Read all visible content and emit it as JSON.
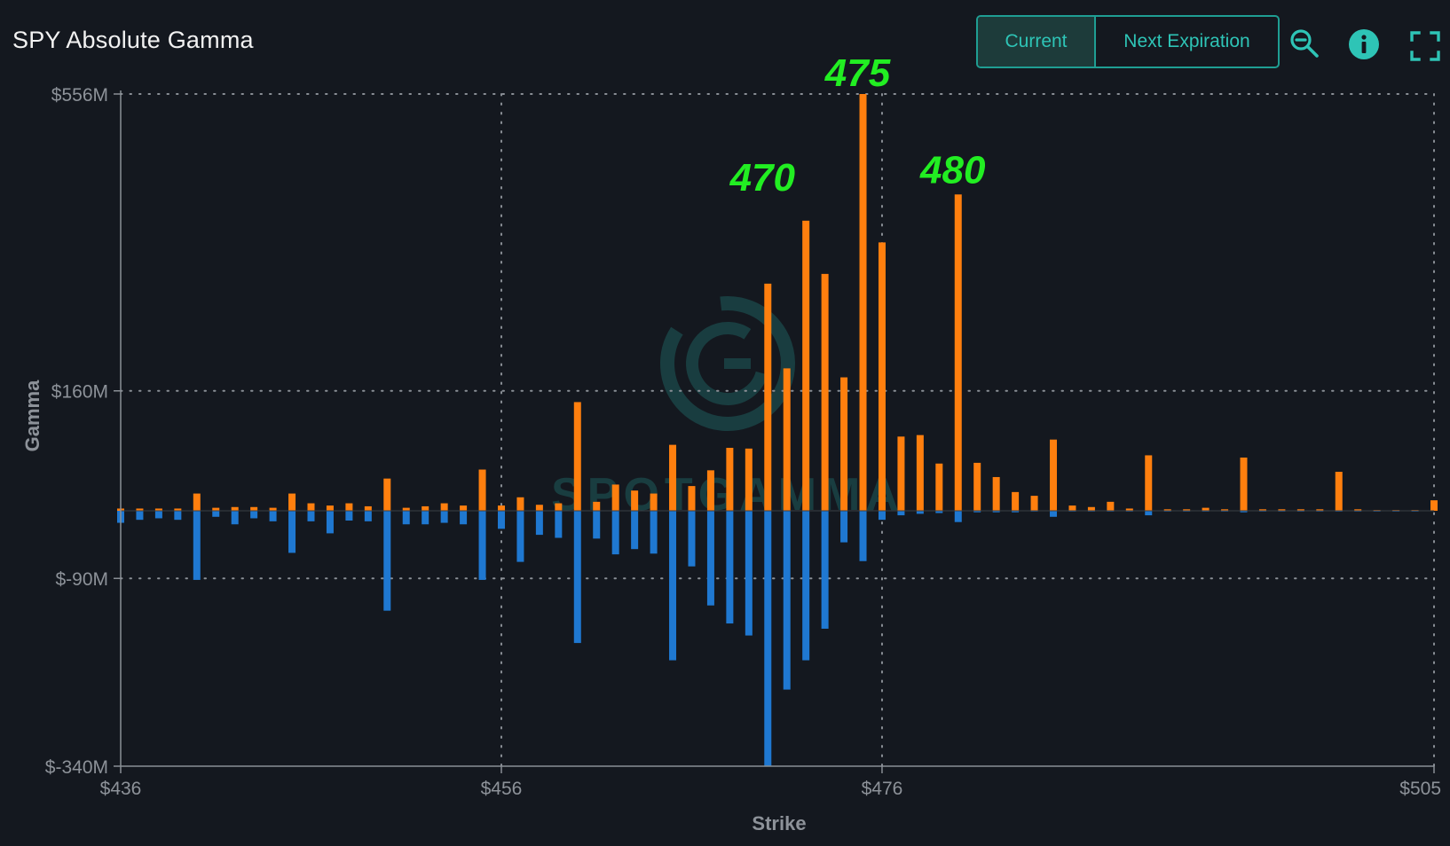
{
  "header": {
    "title": "SPY Absolute Gamma",
    "buttons": {
      "current": "Current",
      "next_expiration": "Next Expiration"
    },
    "icons": [
      "zoom-out-icon",
      "info-icon",
      "fullscreen-icon"
    ]
  },
  "colors": {
    "background": "#14181f",
    "accent": "#2ec4b6",
    "call": "#ff7f0e",
    "put": "#1f78d1",
    "annotation": "#22ee22"
  },
  "chart_data": {
    "type": "bar",
    "title": "SPY Absolute Gamma",
    "xlabel": "Strike",
    "ylabel": "Gamma",
    "xlim": [
      436,
      505
    ],
    "ylim": [
      -340,
      556
    ],
    "x_ticks": [
      {
        "value": 436,
        "label": "$436"
      },
      {
        "value": 456,
        "label": "$456"
      },
      {
        "value": 476,
        "label": "$476"
      },
      {
        "value": 505,
        "label": "$505"
      }
    ],
    "y_ticks": [
      {
        "value": 556,
        "label": "$556M"
      },
      {
        "value": 160,
        "label": "$160M"
      },
      {
        "value": -90,
        "label": "$-90M"
      },
      {
        "value": -340,
        "label": "$-340M"
      }
    ],
    "grid": "dotted",
    "annotations": [
      {
        "x": 470,
        "y": 415,
        "text": "470"
      },
      {
        "x": 475,
        "y": 555,
        "text": "475"
      },
      {
        "x": 480,
        "y": 425,
        "text": "480"
      }
    ],
    "watermark": "SPOTGAMMA",
    "series": [
      {
        "name": "call",
        "values": [
          [
            436,
            3
          ],
          [
            437,
            3
          ],
          [
            438,
            3
          ],
          [
            439,
            3
          ],
          [
            440,
            23
          ],
          [
            441,
            4
          ],
          [
            442,
            5
          ],
          [
            443,
            5
          ],
          [
            444,
            4
          ],
          [
            445,
            23
          ],
          [
            446,
            10
          ],
          [
            447,
            7
          ],
          [
            448,
            10
          ],
          [
            449,
            6
          ],
          [
            450,
            43
          ],
          [
            451,
            4
          ],
          [
            452,
            6
          ],
          [
            453,
            10
          ],
          [
            454,
            7
          ],
          [
            455,
            55
          ],
          [
            456,
            7
          ],
          [
            457,
            18
          ],
          [
            458,
            8
          ],
          [
            459,
            10
          ],
          [
            460,
            145
          ],
          [
            461,
            12
          ],
          [
            462,
            35
          ],
          [
            463,
            27
          ],
          [
            464,
            23
          ],
          [
            465,
            88
          ],
          [
            466,
            33
          ],
          [
            467,
            54
          ],
          [
            468,
            84
          ],
          [
            469,
            83
          ],
          [
            470,
            303
          ],
          [
            471,
            190
          ],
          [
            472,
            387
          ],
          [
            473,
            316
          ],
          [
            474,
            178
          ],
          [
            475,
            556
          ],
          [
            476,
            358
          ],
          [
            477,
            99
          ],
          [
            478,
            101
          ],
          [
            479,
            63
          ],
          [
            480,
            422
          ],
          [
            481,
            64
          ],
          [
            482,
            45
          ],
          [
            483,
            25
          ],
          [
            484,
            20
          ],
          [
            485,
            95
          ],
          [
            486,
            7
          ],
          [
            487,
            5
          ],
          [
            488,
            12
          ],
          [
            489,
            3
          ],
          [
            490,
            74
          ],
          [
            491,
            2
          ],
          [
            492,
            2
          ],
          [
            493,
            4
          ],
          [
            494,
            2
          ],
          [
            495,
            71
          ],
          [
            496,
            2
          ],
          [
            497,
            2
          ],
          [
            498,
            2
          ],
          [
            499,
            2
          ],
          [
            500,
            52
          ],
          [
            501,
            2
          ],
          [
            502,
            1
          ],
          [
            503,
            1
          ],
          [
            504,
            1
          ],
          [
            505,
            14
          ]
        ]
      },
      {
        "name": "put",
        "values": [
          [
            436,
            -16
          ],
          [
            437,
            -12
          ],
          [
            438,
            -10
          ],
          [
            439,
            -12
          ],
          [
            440,
            -92
          ],
          [
            441,
            -8
          ],
          [
            442,
            -18
          ],
          [
            443,
            -10
          ],
          [
            444,
            -14
          ],
          [
            445,
            -56
          ],
          [
            446,
            -14
          ],
          [
            447,
            -30
          ],
          [
            448,
            -13
          ],
          [
            449,
            -14
          ],
          [
            450,
            -133
          ],
          [
            451,
            -18
          ],
          [
            452,
            -18
          ],
          [
            453,
            -16
          ],
          [
            454,
            -18
          ],
          [
            455,
            -92
          ],
          [
            456,
            -24
          ],
          [
            457,
            -68
          ],
          [
            458,
            -32
          ],
          [
            459,
            -36
          ],
          [
            460,
            -176
          ],
          [
            461,
            -37
          ],
          [
            462,
            -58
          ],
          [
            463,
            -51
          ],
          [
            464,
            -57
          ],
          [
            465,
            -199
          ],
          [
            466,
            -74
          ],
          [
            467,
            -126
          ],
          [
            468,
            -150
          ],
          [
            469,
            -166
          ],
          [
            470,
            -340
          ],
          [
            471,
            -238
          ],
          [
            472,
            -199
          ],
          [
            473,
            -157
          ],
          [
            474,
            -42
          ],
          [
            475,
            -67
          ],
          [
            476,
            -12
          ],
          [
            477,
            -6
          ],
          [
            478,
            -4
          ],
          [
            479,
            -3
          ],
          [
            480,
            -15
          ],
          [
            481,
            -2
          ],
          [
            482,
            -2
          ],
          [
            483,
            -2
          ],
          [
            484,
            -1
          ],
          [
            485,
            -8
          ],
          [
            486,
            -1
          ],
          [
            487,
            -1
          ],
          [
            488,
            -1
          ],
          [
            489,
            -1
          ],
          [
            490,
            -6
          ],
          [
            491,
            -1
          ],
          [
            492,
            -1
          ],
          [
            493,
            -1
          ],
          [
            494,
            -1
          ],
          [
            495,
            -2
          ],
          [
            496,
            -1
          ],
          [
            497,
            -1
          ],
          [
            498,
            -1
          ],
          [
            499,
            -1
          ],
          [
            500,
            -1
          ],
          [
            501,
            -1
          ],
          [
            502,
            -1
          ],
          [
            503,
            -1
          ],
          [
            504,
            -1
          ],
          [
            505,
            0
          ]
        ]
      }
    ]
  }
}
